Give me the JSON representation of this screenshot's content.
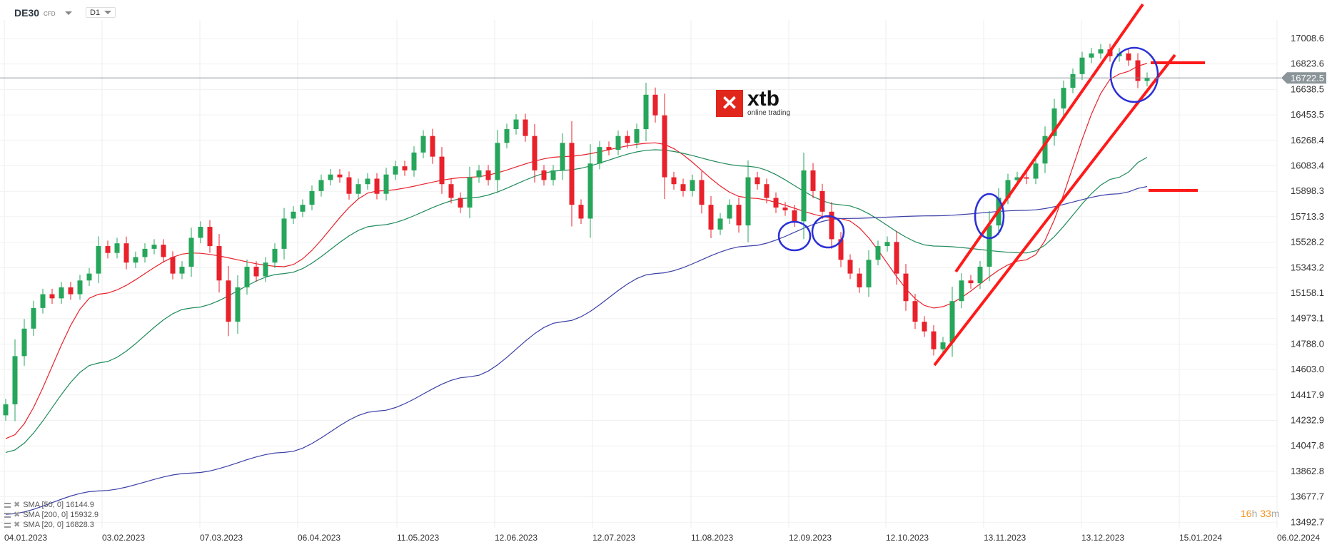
{
  "header": {
    "symbol": "DE30",
    "instrument_type": "CFD",
    "timeframe": "D1"
  },
  "logo": {
    "brand": "xtb",
    "tagline": "online trading",
    "color": "#e1261c"
  },
  "legend": [
    {
      "label": "SMA [50, 0] 16144.9"
    },
    {
      "label": "SMA [200, 0] 15932.9"
    },
    {
      "label": "SMA [20, 0] 16828.3"
    }
  ],
  "timer": {
    "hours": "16",
    "h": "h",
    "minutes": "33",
    "m": "m"
  },
  "colors": {
    "up": "#26a65b",
    "down": "#e8212b",
    "sma20": "#e8212b",
    "sma50": "#1f8a5a",
    "sma200": "#3b3fa6",
    "annotation_line": "#ff1a1a",
    "annotation_circle": "#2b2fd6",
    "price_tag": "#8a9499"
  },
  "chart_data": {
    "type": "candlestick",
    "current_price": "16722.5",
    "y_ticks": [
      "17008.6",
      "16823.6",
      "16638.5",
      "16453.5",
      "16268.4",
      "16083.4",
      "15898.3",
      "15713.3",
      "15528.2",
      "15343.2",
      "15158.1",
      "14973.1",
      "14788.0",
      "14603.0",
      "14417.9",
      "14232.9",
      "14047.8",
      "13862.8",
      "13677.7",
      "13492.7"
    ],
    "ylim": [
      13492.7,
      17008.6
    ],
    "x_ticks": [
      "04.01.2023",
      "03.02.2023",
      "07.03.2023",
      "06.04.2023",
      "11.05.2023",
      "12.06.2023",
      "12.07.2023",
      "11.08.2023",
      "12.09.2023",
      "12.10.2023",
      "13.11.2023",
      "13.12.2023",
      "15.01.2024",
      "06.02.2024"
    ],
    "closes": [
      14350,
      14700,
      14900,
      15050,
      15150,
      15120,
      15200,
      15150,
      15250,
      15300,
      15500,
      15450,
      15520,
      15380,
      15420,
      15480,
      15510,
      15420,
      15300,
      15350,
      15560,
      15640,
      15500,
      15250,
      14950,
      15200,
      15350,
      15280,
      15380,
      15480,
      15700,
      15750,
      15800,
      15900,
      15980,
      16020,
      16000,
      15880,
      15950,
      15990,
      15880,
      16020,
      16080,
      16050,
      16180,
      16300,
      16150,
      15950,
      15850,
      15780,
      16000,
      16050,
      15980,
      16250,
      16350,
      16420,
      16300,
      16050,
      15980,
      16050,
      16250,
      15800,
      15700,
      16100,
      16220,
      16200,
      16300,
      16250,
      16350,
      16600,
      16450,
      16000,
      15950,
      15900,
      15980,
      15800,
      15620,
      15700,
      15800,
      15650,
      16000,
      15950,
      15850,
      15780,
      15760,
      15680,
      16050,
      15900,
      15750,
      15550,
      15400,
      15300,
      15200,
      15400,
      15500,
      15530,
      15300,
      15100,
      14950,
      14880,
      14750,
      14800,
      15100,
      15250,
      15230,
      15350,
      15650,
      15850,
      15980,
      16000,
      15990,
      16100,
      16300,
      16500,
      16650,
      16750,
      16870,
      16900,
      16930,
      16880,
      16900,
      16850,
      16700,
      16722.5
    ],
    "series": [
      {
        "name": "SMA [20, 0]",
        "sample_index": [
          0,
          10,
          20,
          30,
          40,
          50,
          60,
          70,
          80,
          90,
          100,
          110,
          120,
          123
        ],
        "values": [
          14100,
          15150,
          15450,
          15350,
          15900,
          16000,
          16150,
          16250,
          15850,
          15700,
          15050,
          15400,
          16750,
          16828.3
        ]
      },
      {
        "name": "SMA [50, 0]",
        "sample_index": [
          0,
          10,
          20,
          30,
          40,
          50,
          60,
          70,
          80,
          90,
          100,
          110,
          120,
          123
        ],
        "values": [
          14000,
          14650,
          15050,
          15300,
          15650,
          15850,
          16050,
          16200,
          16080,
          15800,
          15500,
          15450,
          16000,
          16144.9
        ]
      },
      {
        "name": "SMA [200, 0]",
        "sample_index": [
          0,
          10,
          20,
          30,
          40,
          50,
          60,
          70,
          80,
          90,
          100,
          110,
          120,
          123
        ],
        "values": [
          13550,
          13720,
          13850,
          14000,
          14300,
          14550,
          14950,
          15300,
          15500,
          15700,
          15720,
          15760,
          15880,
          15932.9
        ]
      }
    ]
  }
}
